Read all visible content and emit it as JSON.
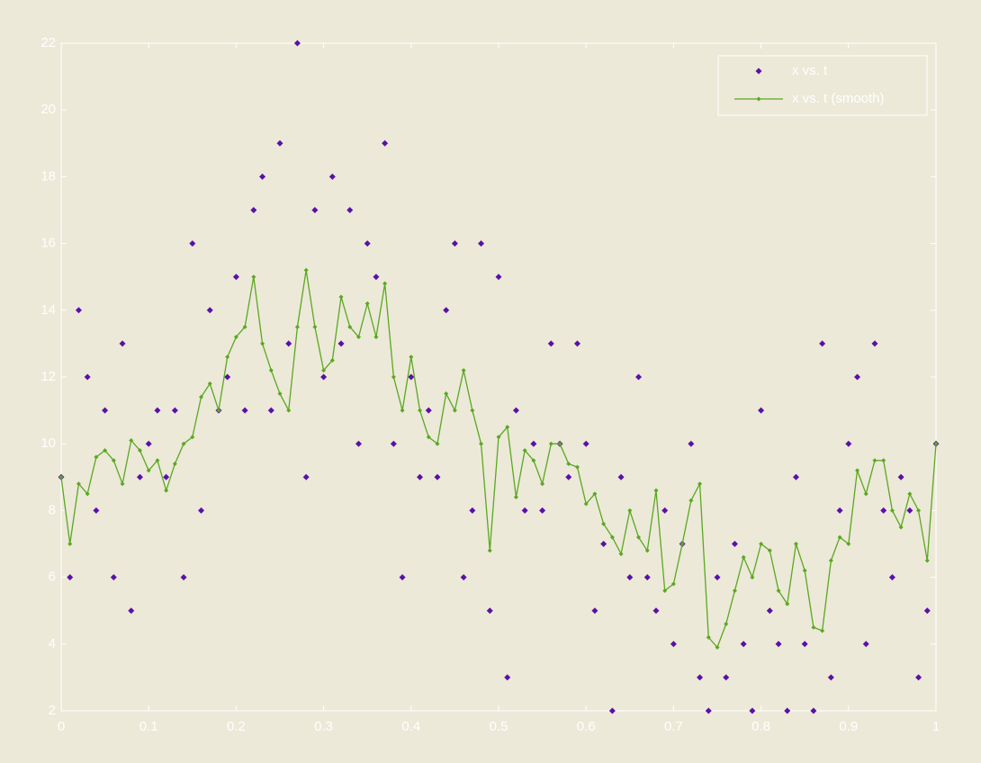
{
  "chart_data": {
    "type": "scatter",
    "x": [
      0,
      0.01,
      0.02,
      0.03,
      0.04,
      0.05,
      0.06,
      0.07,
      0.08,
      0.09,
      0.1,
      0.11,
      0.12,
      0.13,
      0.14,
      0.15,
      0.16,
      0.17,
      0.18,
      0.19,
      0.2,
      0.21,
      0.22,
      0.23,
      0.24,
      0.25,
      0.26,
      0.27,
      0.28,
      0.29,
      0.3,
      0.31,
      0.32,
      0.33,
      0.34,
      0.35,
      0.36,
      0.37,
      0.38,
      0.39,
      0.4,
      0.41,
      0.42,
      0.43,
      0.44,
      0.45,
      0.46,
      0.47,
      0.48,
      0.49,
      0.5,
      0.51,
      0.52,
      0.53,
      0.54,
      0.55,
      0.56,
      0.57,
      0.58,
      0.59,
      0.6,
      0.61,
      0.62,
      0.63,
      0.64,
      0.65,
      0.66,
      0.67,
      0.68,
      0.69,
      0.7,
      0.71,
      0.72,
      0.73,
      0.74,
      0.75,
      0.76,
      0.77,
      0.78,
      0.79,
      0.8,
      0.81,
      0.82,
      0.83,
      0.84,
      0.85,
      0.86,
      0.87,
      0.88,
      0.89,
      0.9,
      0.91,
      0.92,
      0.93,
      0.94,
      0.95,
      0.96,
      0.97,
      0.98,
      0.99,
      1
    ],
    "series": [
      {
        "name": "x vs. t",
        "type": "scatter",
        "color": "#5a10a8",
        "values": [
          9,
          6,
          14,
          12,
          8,
          11,
          6,
          13,
          5,
          9,
          10,
          11,
          9,
          11,
          6,
          16,
          8,
          14,
          11,
          12,
          15,
          11,
          17,
          18,
          11,
          19,
          13,
          22,
          9,
          17,
          12,
          18,
          13,
          17,
          10,
          16,
          15,
          19,
          10,
          6,
          12,
          9,
          11,
          9,
          14,
          16,
          6,
          8,
          16,
          5,
          15,
          3,
          11,
          8,
          10,
          8,
          13,
          10,
          9,
          13,
          10,
          5,
          7,
          2,
          9,
          6,
          12,
          6,
          5,
          8,
          4,
          7,
          10,
          3,
          2,
          6,
          3,
          7,
          4,
          2,
          11,
          5,
          4,
          2,
          9,
          4,
          2,
          13,
          3,
          8,
          10,
          12,
          4,
          13,
          8,
          6,
          9,
          8,
          3,
          5,
          10
        ]
      },
      {
        "name": "x vs. t (smooth)",
        "type": "line",
        "color": "#5aa820",
        "values": [
          9,
          7,
          8.8,
          8.5,
          9.6,
          9.8,
          9.5,
          8.8,
          10.1,
          9.8,
          9.2,
          9.5,
          8.6,
          9.4,
          10,
          10.2,
          11.4,
          11.8,
          11,
          12.6,
          13.2,
          13.5,
          15,
          13,
          12.2,
          11.5,
          11,
          13.5,
          15.2,
          13.5,
          12.2,
          12.5,
          14.4,
          13.5,
          13.2,
          14.2,
          13.2,
          14.8,
          12,
          11,
          12.6,
          11,
          10.2,
          10,
          11.5,
          11,
          12.2,
          11,
          10,
          6.8,
          10.2,
          10.5,
          8.4,
          9.8,
          9.5,
          8.8,
          10,
          10,
          9.4,
          9.3,
          8.2,
          8.5,
          7.6,
          7.2,
          6.7,
          8,
          7.2,
          6.8,
          8.6,
          5.6,
          5.8,
          7,
          8.3,
          8.8,
          4.2,
          3.9,
          4.6,
          5.6,
          6.6,
          6,
          7,
          6.8,
          5.6,
          5.2,
          7,
          6.2,
          4.5,
          4.4,
          6.5,
          7.2,
          7,
          9.2,
          8.5,
          9.5,
          9.5,
          8,
          7.5,
          8.5,
          8,
          6.5,
          10
        ]
      }
    ],
    "xlim": [
      0,
      1
    ],
    "xticks": [
      0,
      0.1,
      0.2,
      0.3,
      0.4,
      0.5,
      0.6,
      0.7,
      0.8,
      0.9,
      1
    ],
    "ylim": [
      2,
      22
    ],
    "yticks": [
      2,
      4,
      6,
      8,
      10,
      12,
      14,
      16,
      18,
      20,
      22
    ],
    "legend": "upper right"
  }
}
